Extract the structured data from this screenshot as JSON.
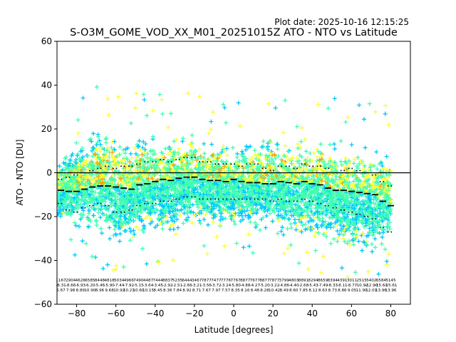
{
  "plot_date": "Plot date: 2025-10-16 12:15:25",
  "chart_data": {
    "type": "scatter",
    "title": "S-O3M_GOME_VOD_XX_M01_20251015Z ATO - NTO vs Latitude",
    "xlabel": "Latitude [degrees]",
    "ylabel": "ATO - NTO [DU]",
    "xlim": [
      -90,
      90
    ],
    "ylim": [
      -60,
      60
    ],
    "xticks": [
      -80,
      -60,
      -40,
      -20,
      0,
      20,
      40,
      60,
      80
    ],
    "yticks": [
      -60,
      -40,
      -20,
      0,
      20,
      40,
      60
    ],
    "x_tick_labels": [
      "−80",
      "−60",
      "−40",
      "−20",
      "0",
      "20",
      "40",
      "60",
      "80"
    ],
    "y_tick_labels": [
      "−60",
      "−40",
      "−20",
      "0",
      "20",
      "40",
      "60"
    ],
    "grid": false,
    "reference_line": 0,
    "marker": "+",
    "colors": {
      "density_low": "#00c8ff",
      "density_mid": "#40ffb0",
      "density_high": "#ffff30",
      "density_top": "#ffa000",
      "outlier": "#0000ff",
      "mean": "#000000"
    },
    "bin_lat": [
      -88,
      -84,
      -80,
      -76,
      -72,
      -68,
      -64,
      -60,
      -56,
      -52,
      -48,
      -44,
      -40,
      -36,
      -32,
      -28,
      -24,
      -20,
      -16,
      -12,
      -8,
      -4,
      0,
      4,
      8,
      12,
      16,
      20,
      24,
      28,
      32,
      36,
      40,
      44,
      48,
      52,
      56,
      60,
      64,
      68,
      72,
      76,
      80
    ],
    "bin_mean": [
      -8,
      -8.5,
      -8.5,
      -7.5,
      -6.5,
      -6,
      -6,
      -6.5,
      -7,
      -7.5,
      -5.5,
      -5,
      -4,
      -3,
      -3.5,
      -2.5,
      -2,
      -2,
      -3,
      -3.5,
      -3.5,
      -4,
      -3,
      -4,
      -4.5,
      -4.5,
      -5,
      -5,
      -4,
      -4.5,
      -5,
      -4,
      -5,
      -5.5,
      -7,
      -8,
      -8,
      -8.5,
      -9,
      -9.5,
      -10,
      -13,
      -15
    ],
    "bin_upper": [
      -3,
      -2,
      -1,
      0,
      1,
      2,
      3,
      2,
      3,
      3,
      4,
      5,
      5,
      6,
      5,
      6,
      7,
      7,
      5,
      5,
      4,
      4,
      4,
      3,
      4,
      4,
      2,
      1,
      3,
      3,
      2,
      4,
      3,
      3,
      2,
      0,
      1,
      2,
      1,
      0,
      -1,
      -4,
      -6
    ],
    "bin_lower": [
      -14,
      -17,
      -18,
      -16,
      -15,
      -14,
      -15,
      -18,
      -18,
      -17,
      -15,
      -14,
      -14,
      -13,
      -13,
      -12,
      -11,
      -11,
      -12,
      -12,
      -12,
      -12,
      -12,
      -12,
      -12,
      -12,
      -12,
      -13,
      -12,
      -13,
      -13,
      -12,
      -13,
      -14,
      -15,
      -16,
      -17,
      -18,
      -19,
      -20,
      -21,
      -25,
      -27
    ],
    "cloud_upper": [
      8,
      12,
      16,
      20,
      24,
      26,
      24,
      20,
      18,
      18,
      20,
      20,
      18,
      18,
      18,
      20,
      20,
      20,
      18,
      16,
      16,
      16,
      14,
      16,
      16,
      18,
      20,
      20,
      18,
      18,
      16,
      18,
      20,
      20,
      18,
      16,
      16,
      18,
      16,
      16,
      18,
      14,
      10
    ],
    "cloud_lower": [
      -24,
      -28,
      -28,
      -30,
      -32,
      -34,
      -36,
      -40,
      -40,
      -36,
      -32,
      -32,
      -32,
      -32,
      -30,
      -30,
      -28,
      -28,
      -28,
      -28,
      -28,
      -28,
      -28,
      -28,
      -30,
      -30,
      -30,
      -30,
      -32,
      -32,
      -34,
      -34,
      -34,
      -36,
      -36,
      -38,
      -40,
      -42,
      -42,
      -44,
      -44,
      -40,
      -34
    ],
    "bin_stats": {
      "counts": [
        "1167",
        "2904",
        "4626",
        "6585",
        "8448",
        "4818",
        "5034",
        "4966",
        "7490",
        "4487",
        "7444",
        "8837",
        "5235",
        "6444",
        "3467",
        "7877",
        "7477",
        "7776",
        "7767",
        "8877",
        "7677",
        "8877",
        "7877",
        "3799",
        "4803",
        "8891",
        "8294",
        "8659",
        "8394",
        "4391",
        "3011",
        "2515",
        "5402",
        "6584",
        "5145"
      ],
      "means": [
        "-8.31",
        "-8.66",
        "-6.93",
        "-6.20",
        "-5.46",
        "-5.90",
        "-7.44",
        "-7.92",
        "-5.15",
        "-3.64",
        "-3.45",
        "-2.92",
        "-2.51",
        "-2.66",
        "-3.21",
        "-3.56",
        "-3.72",
        "-3.24",
        "-5.80",
        "-4.88",
        "-4.27",
        "-5.20",
        "-3.22",
        "-4.86",
        "-4.40",
        "-2.68",
        "-5.43",
        "-7.49",
        "-8.33",
        "-8.11",
        "-8.77",
        "-10.92",
        "-12.90",
        "-15.61",
        "-15.61"
      ],
      "stds": [
        "5.67",
        "7.98",
        "8.89",
        "10.90",
        "8.96",
        "9.68",
        "10.92",
        "10.21",
        "10.60",
        "10.15",
        "8.45",
        "8.36",
        "7.84",
        "8.92",
        "8.71",
        "7.67",
        "7.97",
        "7.57",
        "8.35",
        "8.16",
        "8.48",
        "8.28",
        "10.42",
        "8.49",
        "8.60",
        "7.85",
        "8.12",
        "8.63",
        "8.73",
        "8.86",
        "9.05",
        "11.90",
        "12.01",
        "13.96",
        "13.96"
      ]
    }
  }
}
